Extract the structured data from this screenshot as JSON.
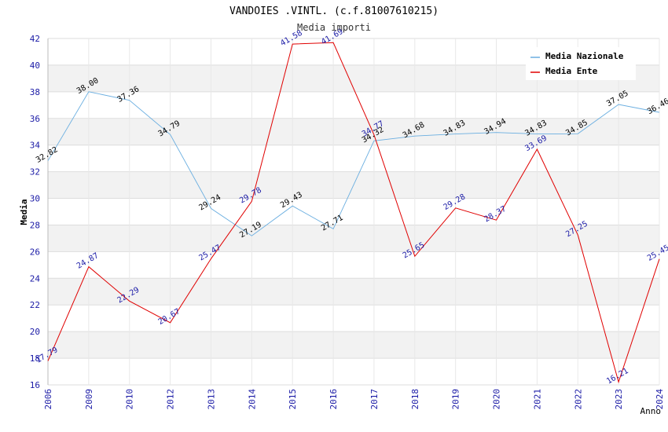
{
  "chart_data": {
    "type": "line",
    "title": "VANDOIES .VINTL. (c.f.81007610215)",
    "subtitle": "Media importi",
    "xlabel": "Anno",
    "ylabel": "Media",
    "ylim": [
      16,
      42
    ],
    "yticks": [
      16,
      18,
      20,
      22,
      24,
      26,
      28,
      30,
      32,
      34,
      36,
      38,
      40,
      42
    ],
    "categories": [
      "2006",
      "2009",
      "2010",
      "2012",
      "2013",
      "2014",
      "2015",
      "2016",
      "2017",
      "2018",
      "2019",
      "2020",
      "2021",
      "2022",
      "2023",
      "2024"
    ],
    "series": [
      {
        "name": "Media Nazionale",
        "color": "#6aaee0",
        "values": [
          32.82,
          38.0,
          37.36,
          34.79,
          29.24,
          27.19,
          29.43,
          27.71,
          34.32,
          34.68,
          34.83,
          34.94,
          34.83,
          34.85,
          37.05,
          36.46
        ],
        "labels": [
          "32.82",
          "38.00",
          "37.36",
          "34.79",
          "29.24",
          "27.19",
          "29.43",
          "27.71",
          "34.32",
          "34.68",
          "34.83",
          "34.94",
          "34.83",
          "34.85",
          "37.05",
          "36.46"
        ]
      },
      {
        "name": "Media Ente",
        "color": "#e00000",
        "values": [
          17.79,
          24.87,
          22.29,
          20.67,
          25.47,
          29.78,
          41.58,
          41.69,
          34.77,
          25.65,
          29.28,
          28.37,
          33.69,
          27.25,
          16.21,
          25.45
        ],
        "labels": [
          "17.79",
          "24.87",
          "22.29",
          "20.67",
          "25.47",
          "29.78",
          "41.58",
          "41.69",
          "34.77",
          "25.65",
          "29.28",
          "28.37",
          "33.69",
          "27.25",
          "16.21",
          "25.45"
        ]
      }
    ],
    "legend_position": "top-right",
    "grid": true
  }
}
